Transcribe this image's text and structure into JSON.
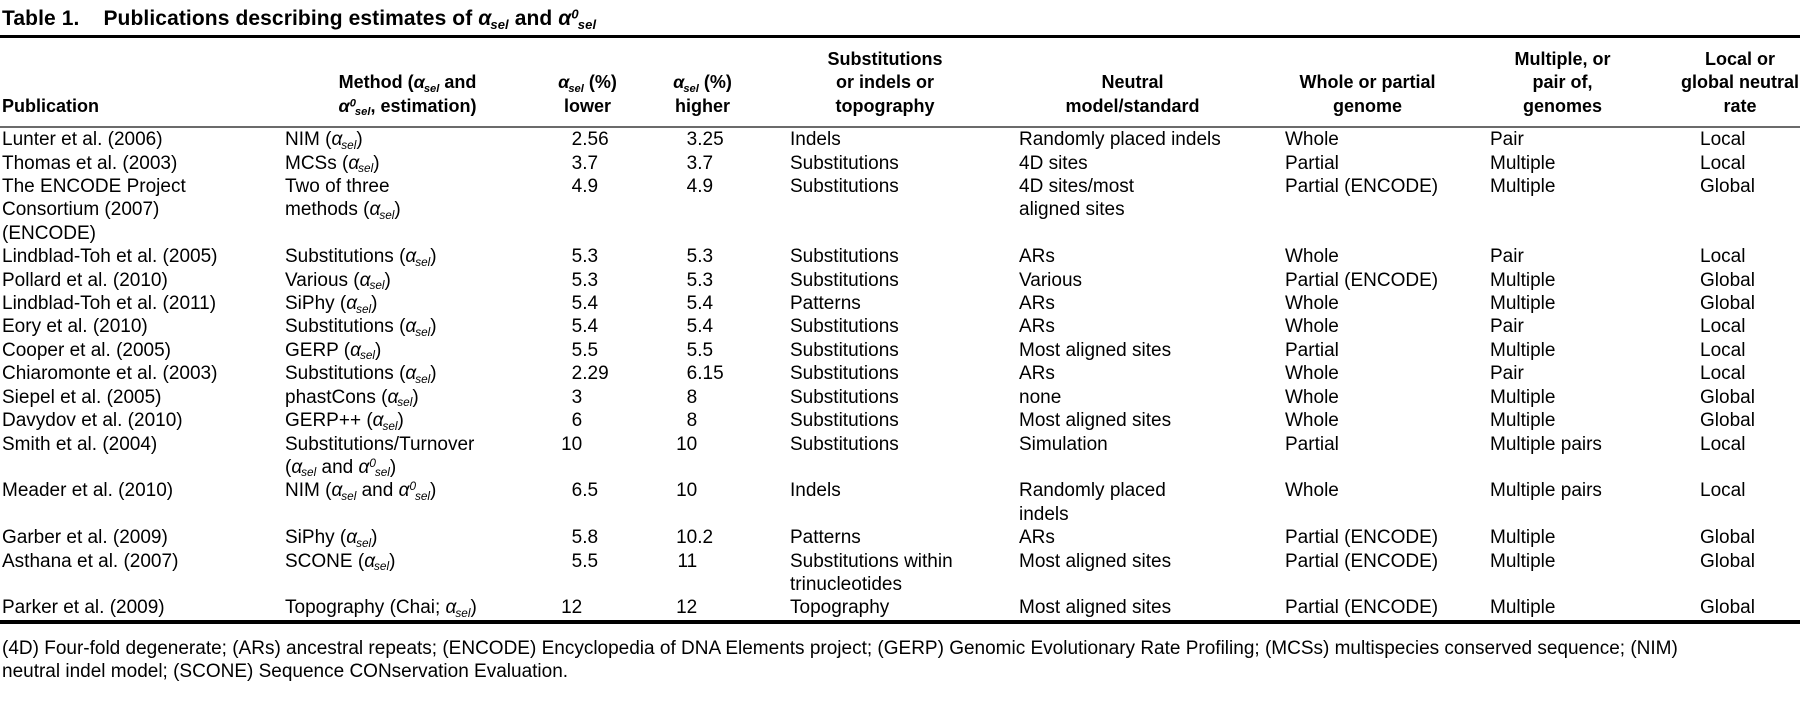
{
  "title": {
    "label": "Table 1.",
    "text": "Publications describing estimates of α_{sel} and α^{0}_{sel}"
  },
  "table": {
    "columns": [
      {
        "key": "publication",
        "label": "Publication"
      },
      {
        "key": "method",
        "label": "Method (α_{sel} and\nα^{0}_{sel}, estimation)"
      },
      {
        "key": "lower",
        "label": "α_{sel} (%)\nlower"
      },
      {
        "key": "higher",
        "label": "α_{sel} (%)\nhigher"
      },
      {
        "key": "substrate",
        "label": "Substitutions\nor indels or\ntopography"
      },
      {
        "key": "neutral",
        "label": "Neutral\nmodel/standard"
      },
      {
        "key": "genome",
        "label": "Whole or partial\ngenome"
      },
      {
        "key": "genomes",
        "label": "Multiple, or\npair of,\ngenomes"
      },
      {
        "key": "rate",
        "label": "Local or\nglobal neutral\nrate"
      }
    ],
    "rows": [
      {
        "publication": "Lunter et al. (2006)",
        "method": "NIM (α_{sel})",
        "lower": "2.56",
        "higher": "3.25",
        "substrate": "Indels",
        "neutral": "Randomly placed indels",
        "genome": "Whole",
        "genomes": "Pair",
        "rate": "Local"
      },
      {
        "publication": "Thomas et al. (2003)",
        "method": "MCSs (α_{sel})",
        "lower": "3.7",
        "higher": "3.7",
        "substrate": "Substitutions",
        "neutral": "4D sites",
        "genome": "Partial",
        "genomes": "Multiple",
        "rate": "Local"
      },
      {
        "publication": "The ENCODE Project\nConsortium (2007)\n(ENCODE)",
        "method": "Two of three\nmethods (α_{sel})",
        "lower": "4.9",
        "higher": "4.9",
        "substrate": "Substitutions",
        "neutral": "4D sites/most\naligned sites",
        "genome": "Partial (ENCODE)",
        "genomes": "Multiple",
        "rate": "Global"
      },
      {
        "publication": "Lindblad-Toh et al. (2005)",
        "method": "Substitutions (α_{sel})",
        "lower": "5.3",
        "higher": "5.3",
        "substrate": "Substitutions",
        "neutral": "ARs",
        "genome": "Whole",
        "genomes": "Pair",
        "rate": "Local"
      },
      {
        "publication": "Pollard et al. (2010)",
        "method": "Various (α_{sel})",
        "lower": "5.3",
        "higher": "5.3",
        "substrate": "Substitutions",
        "neutral": "Various",
        "genome": "Partial (ENCODE)",
        "genomes": "Multiple",
        "rate": "Global"
      },
      {
        "publication": "Lindblad-Toh et al. (2011)",
        "method": "SiPhy (α_{sel})",
        "lower": "5.4",
        "higher": "5.4",
        "substrate": "Patterns",
        "neutral": "ARs",
        "genome": "Whole",
        "genomes": "Multiple",
        "rate": "Global"
      },
      {
        "publication": "Eory et al. (2010)",
        "method": "Substitutions (α_{sel})",
        "lower": "5.4",
        "higher": "5.4",
        "substrate": "Substitutions",
        "neutral": "ARs",
        "genome": "Whole",
        "genomes": "Pair",
        "rate": "Local"
      },
      {
        "publication": "Cooper et al. (2005)",
        "method": "GERP (α_{sel})",
        "lower": "5.5",
        "higher": "5.5",
        "substrate": "Substitutions",
        "neutral": "Most aligned sites",
        "genome": "Partial",
        "genomes": "Multiple",
        "rate": "Local"
      },
      {
        "publication": "Chiaromonte et al. (2003)",
        "method": "Substitutions (α_{sel})",
        "lower": "2.29",
        "higher": "6.15",
        "substrate": "Substitutions",
        "neutral": "ARs",
        "genome": "Whole",
        "genomes": "Pair",
        "rate": "Local"
      },
      {
        "publication": "Siepel et al. (2005)",
        "method": "phastCons (α_{sel})",
        "lower": "3",
        "higher": "8",
        "substrate": "Substitutions",
        "neutral": "none",
        "genome": "Whole",
        "genomes": "Multiple",
        "rate": "Global"
      },
      {
        "publication": "Davydov et al. (2010)",
        "method": "GERP++ (α_{sel})",
        "lower": "6",
        "higher": "8",
        "substrate": "Substitutions",
        "neutral": "Most aligned sites",
        "genome": "Whole",
        "genomes": "Multiple",
        "rate": "Global"
      },
      {
        "publication": "Smith et al. (2004)",
        "method": "Substitutions/Turnover\n(α_{sel} and α^{0}_{sel})",
        "lower": "10",
        "higher": "10",
        "substrate": "Substitutions",
        "neutral": "Simulation",
        "genome": "Partial",
        "genomes": "Multiple pairs",
        "rate": "Local"
      },
      {
        "publication": "Meader et al. (2010)",
        "method": "NIM (α_{sel} and α^{0}_{sel})",
        "lower": "6.5",
        "higher": "10",
        "substrate": "Indels",
        "neutral": "Randomly placed\nindels",
        "genome": "Whole",
        "genomes": "Multiple pairs",
        "rate": "Local"
      },
      {
        "publication": "Garber et al. (2009)",
        "method": "SiPhy (α_{sel})",
        "lower": "5.8",
        "higher": "10.2",
        "substrate": "Patterns",
        "neutral": "ARs",
        "genome": "Partial (ENCODE)",
        "genomes": "Multiple",
        "rate": "Global"
      },
      {
        "publication": "Asthana et al. (2007)",
        "method": "SCONE (α_{sel})",
        "lower": "5.5",
        "higher": "11",
        "substrate": "Substitutions within\ntrinucleotides",
        "neutral": "Most aligned sites",
        "genome": "Partial (ENCODE)",
        "genomes": "Multiple",
        "rate": "Global"
      },
      {
        "publication": "Parker et al. (2009)",
        "method": "Topography (Chai; α_{sel})",
        "lower": "12",
        "higher": "12",
        "substrate": "Topography",
        "neutral": "Most aligned sites",
        "genome": "Partial (ENCODE)",
        "genomes": "Multiple",
        "rate": "Global"
      }
    ]
  },
  "footnote": "(4D) Four-fold degenerate; (ARs) ancestral repeats; (ENCODE) Encyclopedia of DNA Elements project; (GERP) Genomic Evolutionary Rate Profiling; (MCSs) multispecies conserved sequence; (NIM)\nneutral indel model; (SCONE) Sequence CONservation Evaluation."
}
